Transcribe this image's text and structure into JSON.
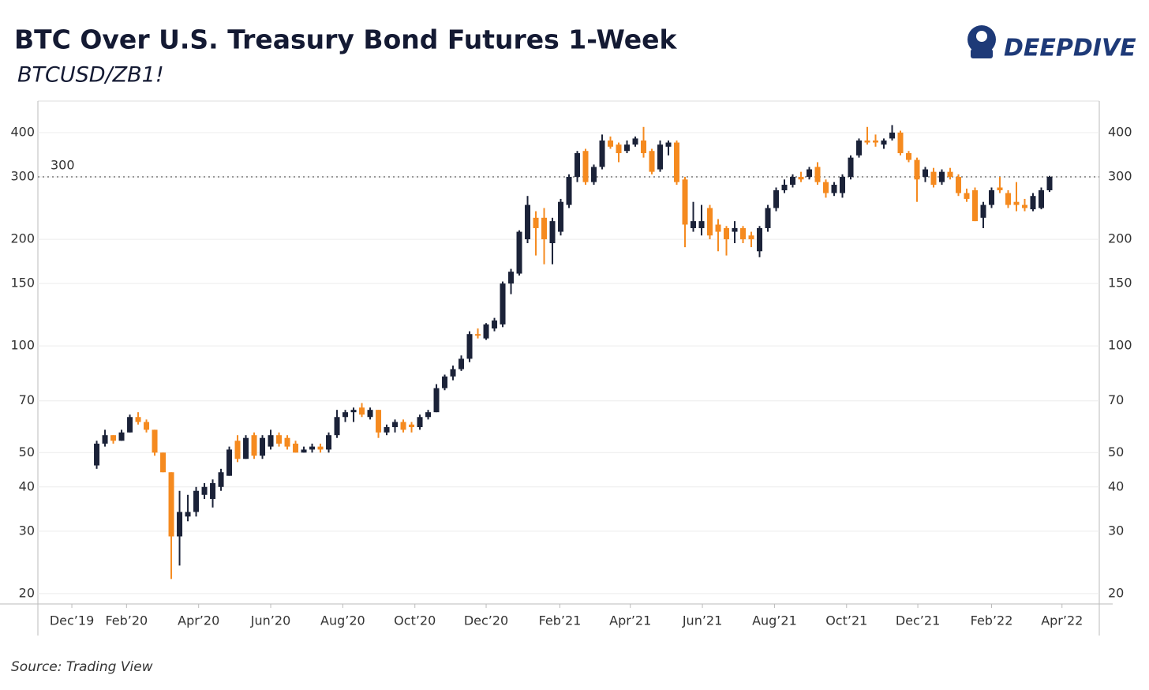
{
  "chart_data": {
    "type": "candlestick",
    "title": "BTC Over U.S. Treasury Bond Futures 1-Week",
    "subtitle": "BTCUSD/ZB1!",
    "source": "Source: Trading View",
    "brand": "DEEPDIVE",
    "log_scale": true,
    "grid": true,
    "up_color": "#1b2238",
    "down_color": "#f58a1f",
    "reference_line": 300,
    "ylim": [
      18.7,
      491
    ],
    "yticks": [
      20,
      30,
      40,
      50,
      70,
      100,
      150,
      200,
      300,
      400
    ],
    "xlim": [
      -7.1,
      121
    ],
    "xticks": [
      {
        "value": -3,
        "label": "Dec’19"
      },
      {
        "value": 3.6,
        "label": "Feb’20"
      },
      {
        "value": 12.3,
        "label": "Apr’20"
      },
      {
        "value": 21,
        "label": "Jun’20"
      },
      {
        "value": 29.7,
        "label": "Aug’20"
      },
      {
        "value": 38.4,
        "label": "Oct’20"
      },
      {
        "value": 47,
        "label": "Dec’20"
      },
      {
        "value": 55.9,
        "label": "Feb’21"
      },
      {
        "value": 64.4,
        "label": "Apr’21"
      },
      {
        "value": 73.1,
        "label": "Jun’21"
      },
      {
        "value": 81.8,
        "label": "Aug’21"
      },
      {
        "value": 90.5,
        "label": "Oct’21"
      },
      {
        "value": 99.1,
        "label": "Dec’21"
      },
      {
        "value": 108,
        "label": "Feb’22"
      },
      {
        "value": 116.5,
        "label": "Apr’22"
      }
    ],
    "candles": [
      [
        46,
        54,
        45,
        53
      ],
      [
        53,
        58,
        52,
        56
      ],
      [
        56,
        56,
        53,
        54
      ],
      [
        54,
        58,
        54,
        57
      ],
      [
        57,
        64,
        57,
        63
      ],
      [
        63,
        65,
        60,
        61
      ],
      [
        61,
        62,
        57,
        58
      ],
      [
        58,
        58,
        49,
        50
      ],
      [
        50,
        50,
        44,
        44
      ],
      [
        44,
        44,
        22,
        29
      ],
      [
        29,
        39,
        24,
        34
      ],
      [
        33,
        38,
        32,
        34
      ],
      [
        34,
        40,
        33,
        39
      ],
      [
        38,
        41,
        37,
        40
      ],
      [
        37,
        42,
        35,
        41
      ],
      [
        40,
        45,
        39,
        44
      ],
      [
        43,
        52,
        43,
        51
      ],
      [
        54,
        56,
        47,
        48
      ],
      [
        48,
        56,
        48,
        55
      ],
      [
        56,
        57,
        48,
        49
      ],
      [
        49,
        56,
        48,
        55
      ],
      [
        52,
        58,
        51,
        56
      ],
      [
        56,
        57,
        52,
        53
      ],
      [
        55,
        56,
        51,
        52
      ],
      [
        53,
        54,
        50,
        50
      ],
      [
        50,
        52,
        50,
        51
      ],
      [
        51,
        53,
        50,
        52
      ],
      [
        52,
        53,
        50,
        51
      ],
      [
        51,
        57,
        50,
        56
      ],
      [
        56,
        66,
        55,
        63
      ],
      [
        63,
        66,
        61,
        65
      ],
      [
        65,
        67,
        61,
        66
      ],
      [
        67,
        69,
        63,
        64
      ],
      [
        63,
        67,
        62,
        66
      ],
      [
        66,
        66,
        55,
        57
      ],
      [
        57,
        60,
        56,
        59
      ],
      [
        59,
        62,
        57,
        61
      ],
      [
        61,
        62,
        57,
        58
      ],
      [
        60,
        61,
        57,
        59
      ],
      [
        59,
        64,
        58,
        63
      ],
      [
        63,
        66,
        62,
        65
      ],
      [
        65,
        78,
        65,
        76
      ],
      [
        76,
        83,
        75,
        82
      ],
      [
        82,
        88,
        80,
        86
      ],
      [
        86,
        94,
        85,
        92
      ],
      [
        92,
        110,
        90,
        108
      ],
      [
        108,
        112,
        105,
        107
      ],
      [
        105,
        116,
        104,
        115
      ],
      [
        112,
        120,
        110,
        118
      ],
      [
        115,
        152,
        113,
        150
      ],
      [
        150,
        165,
        140,
        162
      ],
      [
        160,
        212,
        158,
        210
      ],
      [
        200,
        265,
        195,
        250
      ],
      [
        230,
        240,
        180,
        215
      ],
      [
        230,
        245,
        170,
        200
      ],
      [
        195,
        230,
        170,
        225
      ],
      [
        210,
        260,
        205,
        255
      ],
      [
        250,
        305,
        245,
        300
      ],
      [
        300,
        355,
        290,
        350
      ],
      [
        355,
        360,
        285,
        290
      ],
      [
        290,
        325,
        285,
        320
      ],
      [
        320,
        395,
        315,
        380
      ],
      [
        380,
        390,
        360,
        365
      ],
      [
        370,
        375,
        330,
        350
      ],
      [
        355,
        380,
        350,
        370
      ],
      [
        370,
        390,
        365,
        385
      ],
      [
        380,
        415,
        340,
        350
      ],
      [
        355,
        360,
        305,
        310
      ],
      [
        315,
        380,
        310,
        370
      ],
      [
        365,
        380,
        345,
        375
      ],
      [
        375,
        380,
        285,
        290
      ],
      [
        295,
        300,
        190,
        220
      ],
      [
        215,
        255,
        210,
        225
      ],
      [
        215,
        250,
        205,
        225
      ],
      [
        245,
        250,
        200,
        205
      ],
      [
        220,
        228,
        185,
        210
      ],
      [
        215,
        218,
        180,
        200
      ],
      [
        210,
        225,
        195,
        215
      ],
      [
        215,
        218,
        195,
        200
      ],
      [
        205,
        210,
        190,
        200
      ],
      [
        185,
        218,
        178,
        215
      ],
      [
        215,
        250,
        210,
        245
      ],
      [
        245,
        280,
        240,
        275
      ],
      [
        275,
        295,
        270,
        285
      ],
      [
        285,
        305,
        280,
        300
      ],
      [
        300,
        310,
        290,
        295
      ],
      [
        300,
        320,
        295,
        315
      ],
      [
        320,
        330,
        285,
        290
      ],
      [
        290,
        295,
        262,
        270
      ],
      [
        270,
        290,
        265,
        285
      ],
      [
        270,
        305,
        262,
        300
      ],
      [
        300,
        345,
        295,
        340
      ],
      [
        345,
        385,
        340,
        380
      ],
      [
        380,
        415,
        370,
        375
      ],
      [
        380,
        395,
        365,
        375
      ],
      [
        370,
        385,
        360,
        380
      ],
      [
        385,
        420,
        380,
        400
      ],
      [
        400,
        405,
        345,
        350
      ],
      [
        350,
        355,
        330,
        335
      ],
      [
        335,
        340,
        255,
        295
      ],
      [
        300,
        320,
        290,
        315
      ],
      [
        310,
        318,
        280,
        285
      ],
      [
        290,
        315,
        285,
        310
      ],
      [
        310,
        318,
        295,
        300
      ],
      [
        300,
        305,
        265,
        270
      ],
      [
        270,
        278,
        255,
        260
      ],
      [
        275,
        280,
        225,
        225
      ],
      [
        230,
        255,
        215,
        250
      ],
      [
        250,
        280,
        245,
        275
      ],
      [
        280,
        300,
        270,
        275
      ],
      [
        270,
        275,
        245,
        250
      ],
      [
        255,
        290,
        240,
        250
      ],
      [
        250,
        260,
        240,
        245
      ],
      [
        243,
        270,
        240,
        265
      ],
      [
        245,
        280,
        243,
        275
      ],
      [
        275,
        302,
        272,
        300
      ]
    ]
  }
}
